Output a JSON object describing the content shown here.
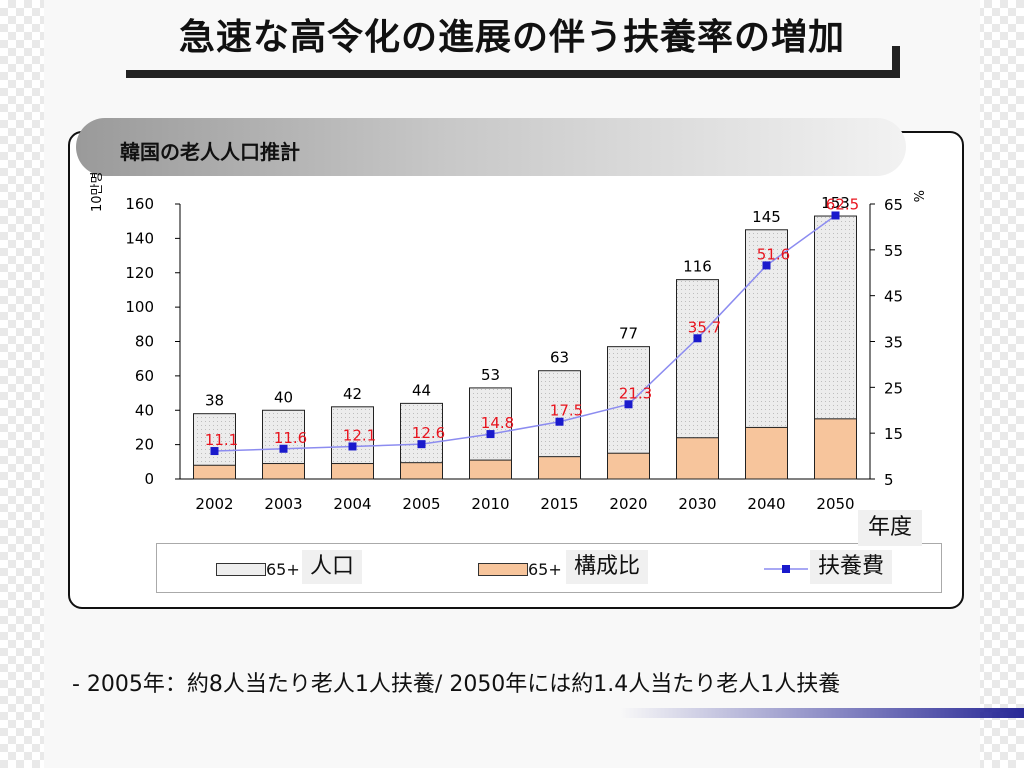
{
  "title": "急速な高令化の進展の伴う扶養率の増加",
  "banner": "韓国の老人人口推計",
  "footnote": "- 2005年：約8人当たり老人1人扶養/ 2050年には約1.4人当たり老人1人扶養",
  "x_axis_title": "年度",
  "legend": [
    {
      "code": "65+",
      "label": "人口"
    },
    {
      "code": "65+",
      "label": "構成比"
    },
    {
      "code": "",
      "label": "扶養費"
    }
  ],
  "chart_data": {
    "type": "bar",
    "categories": [
      "2002",
      "2003",
      "2004",
      "2005",
      "2010",
      "2015",
      "2020",
      "2030",
      "2040",
      "2050"
    ],
    "y_left_label": "10만명",
    "y_left_ticks": [
      0,
      20,
      40,
      60,
      80,
      100,
      120,
      140,
      160
    ],
    "ylim_left": [
      0,
      160
    ],
    "y_right_label": "%",
    "y_right_ticks": [
      5,
      15,
      25,
      35,
      45,
      55,
      65
    ],
    "ylim_right": [
      5,
      65
    ],
    "series": [
      {
        "name": "人口",
        "type": "bar",
        "values": [
          38,
          40,
          42,
          44,
          53,
          63,
          77,
          116,
          145,
          153
        ],
        "color": "#e6e6e6"
      },
      {
        "name": "構成比",
        "type": "bar",
        "values": [
          8,
          9,
          9,
          9.5,
          11,
          13,
          15,
          24,
          30,
          35
        ],
        "color": "#f7c59c"
      },
      {
        "name": "扶養費",
        "type": "line",
        "axis": "right",
        "values": [
          11.1,
          11.6,
          12.1,
          12.6,
          14.8,
          17.5,
          21.3,
          35.7,
          51.6,
          62.5
        ],
        "color": "#1a1acc",
        "line_color": "#8c8cf0",
        "label_color": "#e8141e"
      }
    ]
  }
}
